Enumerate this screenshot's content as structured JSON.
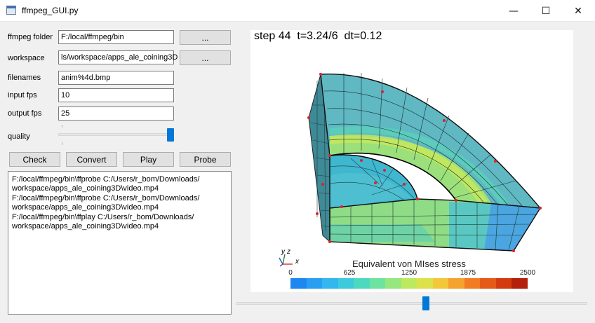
{
  "window": {
    "title": "ffmpeg_GUI.py",
    "minimize_glyph": "—",
    "maximize_glyph": "☐",
    "close_glyph": "✕"
  },
  "form": {
    "ffmpeg_folder": {
      "label": "ffmpeg folder",
      "value": "F:/local/ffmpeg/bin",
      "browse_label": "..."
    },
    "workspace": {
      "label": "workspace",
      "value": "ls/workspace/apps_ale_coining3D",
      "browse_label": "..."
    },
    "filenames": {
      "label": "filenames",
      "value": "anim%4d.bmp"
    },
    "input_fps": {
      "label": "input fps",
      "value": "10"
    },
    "output_fps": {
      "label": "output fps",
      "value": "25"
    },
    "quality": {
      "label": "quality",
      "level": 1.0
    }
  },
  "actions": {
    "check": "Check",
    "convert": "Convert",
    "play": "Play",
    "probe": "Probe"
  },
  "log": {
    "lines": [
      "F:/local/ffmpeg/bin\\ffprobe C:/Users/r_bom/Downloads/",
      "workspace/apps_ale_coining3D\\video.mp4",
      "F:/local/ffmpeg/bin\\ffprobe C:/Users/r_bom/Downloads/",
      "workspace/apps_ale_coining3D\\video.mp4",
      "F:/local/ffmpeg/bin\\ffplay C:/Users/r_bom/Downloads/",
      "workspace/apps_ale_coining3D\\video.mp4"
    ]
  },
  "viewer": {
    "step_text": "step 44  t=3.24/6  dt=0.12",
    "axes": {
      "y": "y",
      "z": "z",
      "x": "x"
    },
    "colorbar": {
      "title": "Equivalent von MIses stress",
      "tick_labels": [
        "0",
        "625",
        "1250",
        "1875",
        "2500"
      ],
      "colors": [
        "#1e88f0",
        "#2a9ff2",
        "#34b6ee",
        "#3ccbdd",
        "#4dd9c0",
        "#6ee39f",
        "#96e77d",
        "#bde95f",
        "#dde24a",
        "#f2c83a",
        "#f6a22e",
        "#f27c22",
        "#e65a18",
        "#d43a10",
        "#b3200c"
      ]
    }
  },
  "timeline": {
    "position": 0.54
  }
}
